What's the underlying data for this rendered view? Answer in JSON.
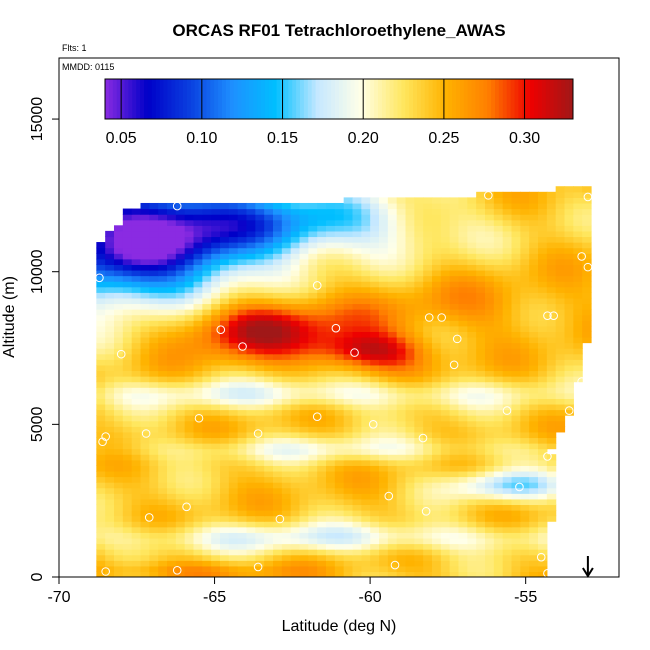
{
  "chart_data": {
    "type": "heatmap",
    "title": "ORCAS RF01 Tetrachloroethylene_AWAS",
    "flights_label": "Flts: 1",
    "date_label": "MMDD: 0115",
    "xlabel": "Latitude (deg N)",
    "ylabel": "Altitude (m)",
    "xlim": [
      -70,
      -52
    ],
    "ylim": [
      0,
      17000
    ],
    "xticks": [
      -70,
      -65,
      -60,
      -55
    ],
    "xtick_labels": [
      "-70",
      "-65",
      "-60",
      "-55"
    ],
    "yticks": [
      0,
      5000,
      10000,
      15000
    ],
    "ytick_labels": [
      "0",
      "5000",
      "10000",
      "15000"
    ],
    "colorbar": {
      "range": [
        0.04,
        0.33
      ],
      "ticks": [
        0.05,
        0.1,
        0.15,
        0.2,
        0.25,
        0.3
      ],
      "tick_labels": [
        "0.05",
        "0.10",
        "0.15",
        "0.20",
        "0.25",
        "0.30"
      ],
      "colors": [
        "#8a2be2",
        "#0000c8",
        "#0a40e0",
        "#1e90ff",
        "#00bfff",
        "#c6e8ff",
        "#ffffe8",
        "#ffe760",
        "#ffb300",
        "#ff7f00",
        "#ee0000",
        "#a01818"
      ]
    },
    "arrow_latitude": -53,
    "field": {
      "lat_bounds": [
        -68.8,
        -52.9
      ],
      "alt_bounds": [
        0,
        12800
      ],
      "right_edge": [
        [
          0,
          -54.4
        ],
        [
          1500,
          -54.4
        ],
        [
          2000,
          -54.0
        ],
        [
          3000,
          -54.0
        ],
        [
          4200,
          -54.2
        ],
        [
          5500,
          -53.5
        ],
        [
          6500,
          -53.3
        ],
        [
          7800,
          -53.0
        ],
        [
          9000,
          -52.9
        ],
        [
          10500,
          -52.9
        ],
        [
          12200,
          -52.9
        ]
      ],
      "left_edge": [
        [
          0,
          -68.8
        ],
        [
          1800,
          -68.8
        ],
        [
          6500,
          -68.7
        ],
        [
          11000,
          -68.7
        ],
        [
          11600,
          -68.0
        ]
      ],
      "top_edge": [
        [
          -68.7,
          11800
        ],
        [
          -67.0,
          12300
        ],
        [
          -62.0,
          12300
        ],
        [
          -57.0,
          12500
        ],
        [
          -52.9,
          12800
        ]
      ],
      "background_value": 0.24,
      "features": [
        {
          "name": "low-value-northwest-lobe",
          "lat": -67.5,
          "alt": 11000,
          "sig_lat": 2.6,
          "sig_alt": 1500,
          "value": -0.19
        },
        {
          "name": "low-value-upper-band",
          "lat": -62.5,
          "alt": 11600,
          "sig_lat": 3.2,
          "sig_alt": 800,
          "value": -0.09
        },
        {
          "name": "high-value-core-west",
          "lat": -63.8,
          "alt": 8200,
          "sig_lat": 2.0,
          "sig_alt": 700,
          "value": 0.085
        },
        {
          "name": "high-value-core-east",
          "lat": -60.0,
          "alt": 7400,
          "sig_lat": 1.3,
          "sig_alt": 450,
          "value": 0.075
        },
        {
          "name": "high-value-mid-band",
          "lat": -57.0,
          "alt": 8800,
          "sig_lat": 3.0,
          "sig_alt": 700,
          "value": 0.02
        },
        {
          "name": "mid-level-pale-band",
          "lat": -62.0,
          "alt": 6000,
          "sig_lat": 6.0,
          "sig_alt": 350,
          "value": -0.045
        },
        {
          "name": "lower-pale-band",
          "lat": -61.0,
          "alt": 4200,
          "sig_lat": 5.0,
          "sig_alt": 300,
          "value": -0.035
        },
        {
          "name": "blue-streak-lower-east",
          "lat": -55.5,
          "alt": 3000,
          "sig_lat": 1.4,
          "sig_alt": 350,
          "value": -0.07
        },
        {
          "name": "surface-pale-band",
          "lat": -61.0,
          "alt": 1300,
          "sig_lat": 6.0,
          "sig_alt": 350,
          "value": -0.05
        },
        {
          "name": "surface-warm-strip",
          "lat": -66.0,
          "alt": 200,
          "sig_lat": 2.5,
          "sig_alt": 250,
          "value": 0.03
        }
      ]
    },
    "samples": [
      {
        "lat": -68.6,
        "alt": 11600
      },
      {
        "lat": -68.7,
        "alt": 9800
      },
      {
        "lat": -66.2,
        "alt": 12150
      },
      {
        "lat": -53.0,
        "alt": 12450
      },
      {
        "lat": -53.2,
        "alt": 10500
      },
      {
        "lat": -53.0,
        "alt": 10150
      },
      {
        "lat": -68.0,
        "alt": 7300
      },
      {
        "lat": -64.8,
        "alt": 8100
      },
      {
        "lat": -64.1,
        "alt": 7550
      },
      {
        "lat": -61.7,
        "alt": 9550
      },
      {
        "lat": -61.1,
        "alt": 8150
      },
      {
        "lat": -60.5,
        "alt": 7350
      },
      {
        "lat": -58.1,
        "alt": 8500
      },
      {
        "lat": -57.7,
        "alt": 8500
      },
      {
        "lat": -57.2,
        "alt": 7800
      },
      {
        "lat": -57.3,
        "alt": 6950
      },
      {
        "lat": -54.3,
        "alt": 8560
      },
      {
        "lat": -54.1,
        "alt": 8560
      },
      {
        "lat": -53.2,
        "alt": 6400
      },
      {
        "lat": -55.6,
        "alt": 5450
      },
      {
        "lat": -53.6,
        "alt": 5450
      },
      {
        "lat": -65.5,
        "alt": 5200
      },
      {
        "lat": -61.7,
        "alt": 5250
      },
      {
        "lat": -59.9,
        "alt": 5000
      },
      {
        "lat": -58.3,
        "alt": 4550
      },
      {
        "lat": -63.6,
        "alt": 4700
      },
      {
        "lat": -67.2,
        "alt": 4700
      },
      {
        "lat": -68.5,
        "alt": 4600
      },
      {
        "lat": -68.6,
        "alt": 4430
      },
      {
        "lat": -54.3,
        "alt": 3950
      },
      {
        "lat": -55.2,
        "alt": 2950
      },
      {
        "lat": -59.4,
        "alt": 2650
      },
      {
        "lat": -65.9,
        "alt": 2300
      },
      {
        "lat": -67.1,
        "alt": 1950
      },
      {
        "lat": -62.9,
        "alt": 1900
      },
      {
        "lat": -58.2,
        "alt": 2150
      },
      {
        "lat": -54.0,
        "alt": 1500
      },
      {
        "lat": -54.5,
        "alt": 650
      },
      {
        "lat": -54.3,
        "alt": 120
      },
      {
        "lat": -63.6,
        "alt": 330
      },
      {
        "lat": -66.2,
        "alt": 220
      },
      {
        "lat": -68.5,
        "alt": 180
      },
      {
        "lat": -59.2,
        "alt": 390
      },
      {
        "lat": -56.2,
        "alt": 12500
      }
    ]
  }
}
